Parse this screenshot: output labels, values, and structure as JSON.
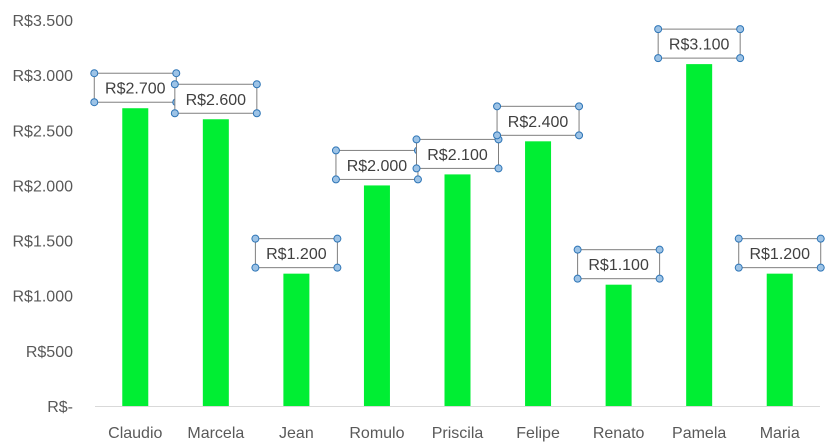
{
  "chart_data": {
    "type": "bar",
    "categories": [
      "Claudio",
      "Marcela",
      "Jean",
      "Romulo",
      "Priscila",
      "Felipe",
      "Renato",
      "Pamela",
      "Maria"
    ],
    "values": [
      2700,
      2600,
      1200,
      2000,
      2100,
      2400,
      1100,
      3100,
      1200
    ],
    "data_labels": [
      "R$2.700",
      "R$2.600",
      "R$1.200",
      "R$2.000",
      "R$2.100",
      "R$2.400",
      "R$1.100",
      "R$3.100",
      "R$1.200"
    ],
    "ylim": [
      0,
      3500
    ],
    "yticks": [
      0,
      500,
      1000,
      1500,
      2000,
      2500,
      3000,
      3500
    ],
    "ytick_labels": [
      "R$-",
      "R$500",
      "R$1.000",
      "R$1.500",
      "R$2.000",
      "R$2.500",
      "R$3.000",
      "R$3.500"
    ],
    "grid": false,
    "legend": "none",
    "bar_color": "#00ee33",
    "axis_color": "#d9d9d9"
  }
}
